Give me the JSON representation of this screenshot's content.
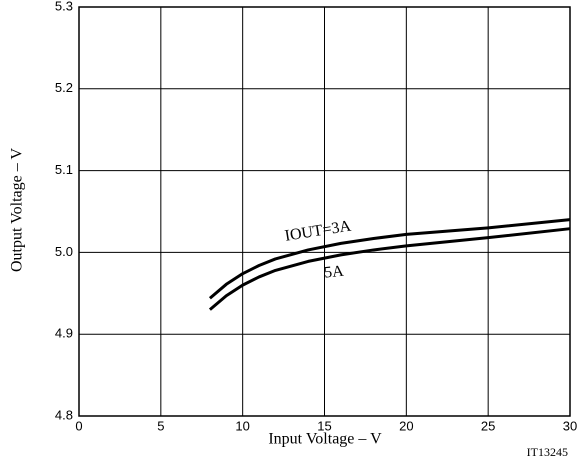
{
  "chart_data": {
    "type": "line",
    "x_label": "Input Voltage  –  V",
    "y_label": "Output Voltage  –  V",
    "figure_id": "IT13245",
    "xlim": [
      0,
      30
    ],
    "xticks": [
      0,
      5,
      10,
      15,
      20,
      25,
      30
    ],
    "ylim": [
      4.8,
      5.3
    ],
    "yticks": [
      4.8,
      4.9,
      {
        "value": 5,
        "label": "5.0"
      },
      5.1,
      5.2,
      5.3
    ],
    "grid": true,
    "series": [
      {
        "name": "IOUT=3A",
        "color": "#000000",
        "x": [
          8,
          9,
          10,
          11,
          12,
          14,
          16,
          18,
          20,
          25,
          30
        ],
        "values": [
          4.944,
          4.961,
          4.974,
          4.984,
          4.992,
          5.003,
          5.011,
          5.017,
          5.022,
          5.03,
          5.04
        ]
      },
      {
        "name": "5A",
        "color": "#000000",
        "x": [
          8,
          9,
          10,
          11,
          12,
          14,
          16,
          18,
          20,
          25,
          30
        ],
        "values": [
          4.93,
          4.947,
          4.96,
          4.97,
          4.978,
          4.989,
          4.997,
          5.003,
          5.008,
          5.018,
          5.029
        ]
      }
    ]
  }
}
